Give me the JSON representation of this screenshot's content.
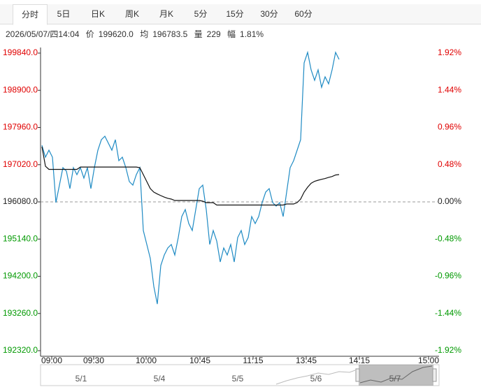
{
  "tabs": [
    "分时",
    "5日",
    "日K",
    "周K",
    "月K",
    "5分",
    "15分",
    "30分",
    "60分"
  ],
  "active_tab": 0,
  "info": {
    "datetime": "2026/05/07/四14:04",
    "price_label": "价",
    "price": "199620.0",
    "avg_label": "均",
    "avg": "196783.5",
    "volume_label": "量",
    "volume": "229",
    "range_label": "幅",
    "range": "1.81%"
  },
  "chart_data": {
    "type": "line",
    "x": [
      0,
      1,
      2,
      3,
      4,
      5,
      6,
      7,
      8,
      9,
      10,
      11,
      12,
      13,
      14,
      15,
      16,
      17,
      18,
      19,
      20,
      21,
      22,
      23,
      24,
      25,
      26,
      27,
      28,
      29,
      30,
      31,
      32,
      33,
      34,
      35,
      36,
      37,
      38,
      39,
      40,
      41,
      42,
      43,
      44,
      45,
      46,
      47,
      48,
      49,
      50,
      51,
      52,
      53,
      54,
      55,
      56,
      57,
      58,
      59,
      60,
      61,
      62,
      63,
      64,
      65,
      66,
      67,
      68,
      69,
      70,
      71,
      72,
      73,
      74,
      75,
      76,
      77,
      78,
      79,
      80,
      81,
      82,
      83,
      84,
      85
    ],
    "series": [
      {
        "name": "价",
        "color": "#1f8bc4",
        "values": [
          197510,
          197210,
          197386,
          197210,
          196062,
          196504,
          196945,
          196857,
          196415,
          196945,
          196768,
          196945,
          196680,
          196945,
          196415,
          196945,
          197386,
          197651,
          197739,
          197563,
          197386,
          197651,
          197121,
          197210,
          196945,
          196592,
          196504,
          196768,
          196945,
          195356,
          195003,
          194650,
          193944,
          193500,
          194473,
          194738,
          194915,
          195003,
          194738,
          195180,
          195709,
          195886,
          195533,
          195356,
          195886,
          196415,
          196504,
          195886,
          195003,
          195356,
          195091,
          194562,
          194915,
          194738,
          195003,
          194562,
          195180,
          195356,
          195003,
          195180,
          195709,
          195533,
          195709,
          196062,
          196327,
          196415,
          196062,
          195974,
          196062,
          195709,
          196327,
          196945,
          197121,
          197386,
          197651,
          199593,
          199858,
          199416,
          199152,
          199416,
          198975,
          199240,
          199063,
          199416,
          199858,
          199681
        ]
      },
      {
        "name": "均",
        "color": "#111111",
        "values": [
          197474,
          196980,
          196900,
          196900,
          196900,
          196900,
          196900,
          196900,
          196900,
          196900,
          196900,
          196960,
          196960,
          196960,
          196960,
          196960,
          196960,
          196960,
          196960,
          196960,
          196960,
          196960,
          196960,
          196960,
          196960,
          196960,
          196960,
          196960,
          196945,
          196768,
          196592,
          196415,
          196327,
          196280,
          196239,
          196200,
          196170,
          196150,
          196115,
          196115,
          196115,
          196115,
          196115,
          196115,
          196115,
          196115,
          196097,
          196060,
          196060,
          196060,
          196000,
          196000,
          196000,
          196000,
          196000,
          196000,
          196000,
          196000,
          196000,
          196000,
          196000,
          196000,
          196000,
          196000,
          196000,
          196000,
          196000,
          196000,
          196000,
          196000,
          196027,
          196027,
          196027,
          196062,
          196150,
          196327,
          196450,
          196550,
          196600,
          196627,
          196650,
          196670,
          196700,
          196720,
          196760,
          196770
        ]
      }
    ],
    "xlim": [
      -0.4,
      113.6
    ],
    "xticks": [
      {
        "value": 2.8,
        "label": "09:00"
      },
      {
        "value": 14.8,
        "label": "09:30"
      },
      {
        "value": 29.8,
        "label": "10:00"
      },
      {
        "value": 45.2,
        "label": "10:45"
      },
      {
        "value": 60.4,
        "label": "11:15"
      },
      {
        "value": 75.6,
        "label": "13:45"
      },
      {
        "value": 90.8,
        "label": "14:15"
      },
      {
        "value": 110.6,
        "label": "15:00"
      }
    ],
    "ylim": [
      192320,
      199840
    ],
    "yticks": [
      {
        "value": 199840,
        "label": "199840.0"
      },
      {
        "value": 198900,
        "label": "198900.0"
      },
      {
        "value": 197960,
        "label": "197960.0"
      },
      {
        "value": 197020,
        "label": "197020.0"
      },
      {
        "value": 196080,
        "label": "196080.0"
      },
      {
        "value": 195140,
        "label": "195140.0"
      },
      {
        "value": 194200,
        "label": "194200.0"
      },
      {
        "value": 193260,
        "label": "193260.0"
      },
      {
        "value": 192320,
        "label": "192320.0"
      }
    ],
    "y2lim": [
      -1.92,
      1.92
    ],
    "y2ticks": [
      {
        "value": 1.92,
        "label": "1.92%"
      },
      {
        "value": 1.44,
        "label": "1.44%"
      },
      {
        "value": 0.96,
        "label": "0.96%"
      },
      {
        "value": 0.48,
        "label": "0.48%"
      },
      {
        "value": 0,
        "label": "0.00%"
      },
      {
        "value": -0.48,
        "label": "-0.48%"
      },
      {
        "value": -0.96,
        "label": "-0.96%"
      },
      {
        "value": -1.44,
        "label": "-1.44%"
      },
      {
        "value": -1.92,
        "label": "-1.92%"
      }
    ],
    "baseline": 196080,
    "up_color": "#e00000",
    "down_color": "#009900",
    "navigator_labels": [
      "5/1",
      "5/4",
      "5/5",
      "5/6",
      "5/7"
    ]
  }
}
